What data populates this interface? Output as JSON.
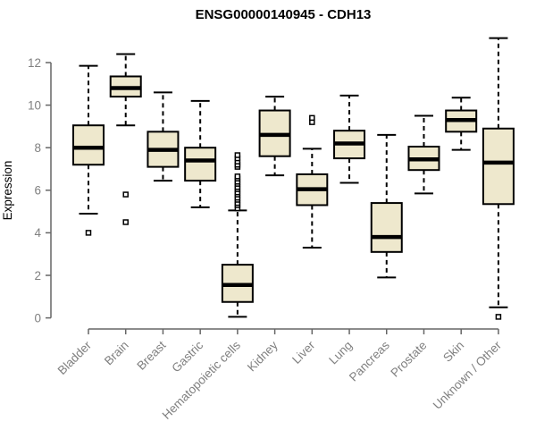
{
  "chart_data": {
    "type": "boxplot",
    "title": "ENSG00000140945 - CDH13",
    "ylabel": "Expression",
    "xlabel": "",
    "ylim": [
      0,
      13.3
    ],
    "yticks": [
      0,
      2,
      4,
      6,
      8,
      10,
      12
    ],
    "grid": false,
    "legend": false,
    "categories": [
      "Bladder",
      "Brain",
      "Breast",
      "Gastric",
      "Hematopoietic cells",
      "Kidney",
      "Liver",
      "Lung",
      "Pancreas",
      "Prostate",
      "Skin",
      "Unknown / Other"
    ],
    "series": [
      {
        "category": "Bladder",
        "whisker_low": 4.9,
        "q1": 7.2,
        "median": 8.0,
        "q3": 9.05,
        "whisker_high": 11.85,
        "outliers": [
          4.0
        ]
      },
      {
        "category": "Brain",
        "whisker_low": 9.05,
        "q1": 10.4,
        "median": 10.8,
        "q3": 11.35,
        "whisker_high": 12.4,
        "outliers": [
          5.8,
          4.5
        ]
      },
      {
        "category": "Breast",
        "whisker_low": 6.45,
        "q1": 7.1,
        "median": 7.9,
        "q3": 8.75,
        "whisker_high": 10.6,
        "outliers": []
      },
      {
        "category": "Gastric",
        "whisker_low": 5.2,
        "q1": 6.45,
        "median": 7.4,
        "q3": 8.0,
        "whisker_high": 10.2,
        "outliers": []
      },
      {
        "category": "Hematopoietic cells",
        "whisker_low": 0.05,
        "q1": 0.75,
        "median": 1.55,
        "q3": 2.5,
        "whisker_high": 5.05,
        "outliers": [
          5.15,
          5.3,
          5.4,
          5.55,
          5.65,
          5.8,
          5.9,
          6.05,
          6.15,
          6.3,
          6.4,
          6.55,
          6.65,
          7.1,
          7.2,
          7.35,
          7.5,
          7.65
        ]
      },
      {
        "category": "Kidney",
        "whisker_low": 6.7,
        "q1": 7.6,
        "median": 8.6,
        "q3": 9.75,
        "whisker_high": 10.4,
        "outliers": []
      },
      {
        "category": "Liver",
        "whisker_low": 3.3,
        "q1": 5.3,
        "median": 6.05,
        "q3": 6.75,
        "whisker_high": 7.95,
        "outliers": [
          9.2,
          9.4
        ]
      },
      {
        "category": "Lung",
        "whisker_low": 6.35,
        "q1": 7.5,
        "median": 8.2,
        "q3": 8.8,
        "whisker_high": 10.45,
        "outliers": []
      },
      {
        "category": "Pancreas",
        "whisker_low": 1.9,
        "q1": 3.1,
        "median": 3.8,
        "q3": 5.4,
        "whisker_high": 8.6,
        "outliers": []
      },
      {
        "category": "Prostate",
        "whisker_low": 5.85,
        "q1": 6.95,
        "median": 7.45,
        "q3": 8.05,
        "whisker_high": 9.5,
        "outliers": []
      },
      {
        "category": "Skin",
        "whisker_low": 7.9,
        "q1": 8.75,
        "median": 9.3,
        "q3": 9.75,
        "whisker_high": 10.35,
        "outliers": []
      },
      {
        "category": "Unknown / Other",
        "whisker_low": 0.5,
        "q1": 5.35,
        "median": 7.3,
        "q3": 8.9,
        "whisker_high": 13.15,
        "outliers": [
          0.05
        ]
      }
    ],
    "colors": {
      "box_fill": "#EEE8CD",
      "box_stroke": "#000000",
      "median": "#000000",
      "whisker": "#000000",
      "outlier_stroke": "#000000",
      "outlier_fill": "#FFFFFF",
      "axis_line": "#666666",
      "tick_label": "#808080",
      "axis_label": "#808080",
      "title": "#000000",
      "background": "#FFFFFF"
    }
  }
}
